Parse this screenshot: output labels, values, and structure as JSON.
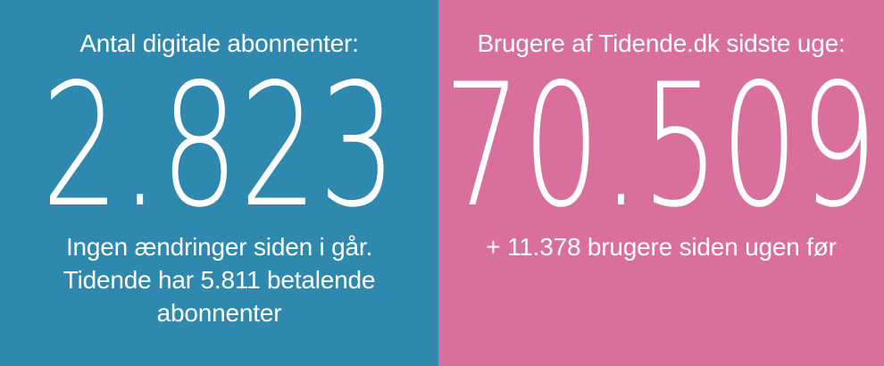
{
  "subscribers": {
    "label": "Antal digitale abonnenter:",
    "value": "2.823",
    "note": "Ingen ændringer siden i går. Tidende har 5.811 betalende abonnenter",
    "background_color": "#2f88ad"
  },
  "users": {
    "label": "Brugere af Tidende.dk sidste uge:",
    "value": "70.509",
    "note": "+ 11.378 brugere siden ugen før",
    "background_color": "#d86f9c"
  }
}
